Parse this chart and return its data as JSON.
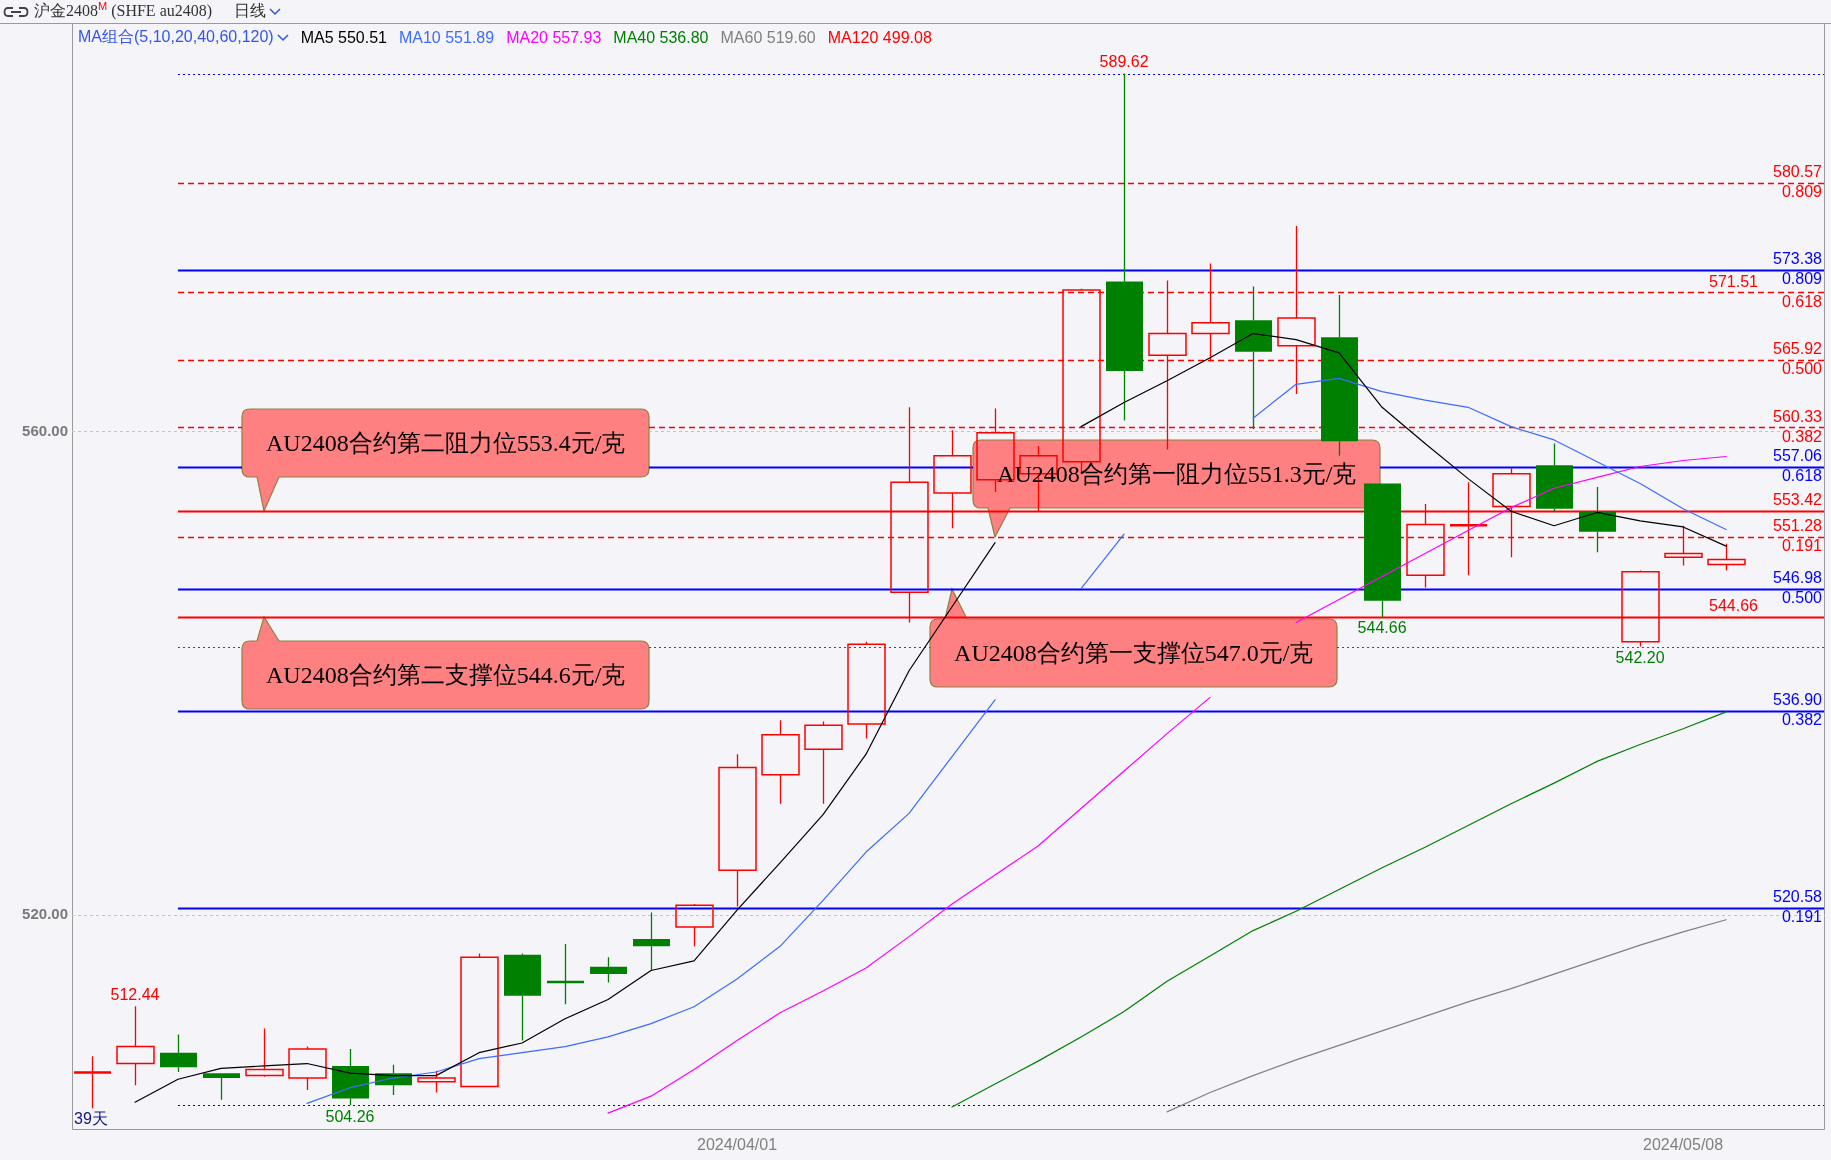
{
  "chart_data": {
    "type": "candlestick",
    "title": "沪金2408$^{M}$ (SHFE au2408)",
    "subtitle": "日线",
    "legend_title": "MA组合(5,10,20,40,60,120)",
    "legend": "top left",
    "grid": "y",
    "categories": [
      null,
      null,
      null,
      null,
      null,
      null,
      null,
      null,
      null,
      null,
      null,
      null,
      null,
      null,
      null,
      "2024/04/01",
      null,
      null,
      null,
      null,
      null,
      null,
      null,
      null,
      null,
      null,
      null,
      null,
      null,
      null,
      null,
      null,
      null,
      null,
      null,
      null,
      null,
      "2024/05/08",
      null
    ],
    "ohlc": [
      [
        506.9,
        508.3,
        504.0,
        507.0
      ],
      [
        507.7,
        512.44,
        505.9,
        509.1
      ],
      [
        508.6,
        510.1,
        507.0,
        507.4
      ],
      [
        506.9,
        506.9,
        504.7,
        506.5
      ],
      [
        506.7,
        510.6,
        506.6,
        507.2
      ],
      [
        506.5,
        509.1,
        505.5,
        508.9
      ],
      [
        507.5,
        508.9,
        504.26,
        504.8
      ],
      [
        506.9,
        507.6,
        505.1,
        505.9
      ],
      [
        506.2,
        507.1,
        505.3,
        506.5
      ],
      [
        505.8,
        516.8,
        505.8,
        516.5
      ],
      [
        516.7,
        516.8,
        509.6,
        513.3
      ],
      [
        514.5,
        517.6,
        512.6,
        514.4
      ],
      [
        515.7,
        516.5,
        514.4,
        515.1
      ],
      [
        518.0,
        520.2,
        515.4,
        517.4
      ],
      [
        519.0,
        520.9,
        517.4,
        520.8
      ],
      [
        523.7,
        533.3,
        520.7,
        532.2
      ],
      [
        531.6,
        536.1,
        529.2,
        534.9
      ],
      [
        533.7,
        536.0,
        529.2,
        535.7
      ],
      [
        535.8,
        542.6,
        534.6,
        542.4
      ],
      [
        546.7,
        562.0,
        544.2,
        555.8
      ],
      [
        554.9,
        560.1,
        552.0,
        558.0
      ],
      [
        556.0,
        561.9,
        555.0,
        559.9
      ],
      [
        556.5,
        558.8,
        553.4,
        558.0
      ],
      [
        557.5,
        571.8,
        556.5,
        571.7
      ],
      [
        572.4,
        589.62,
        560.9,
        565.0
      ],
      [
        566.3,
        572.5,
        558.5,
        568.1
      ],
      [
        568.1,
        573.9,
        565.8,
        569.0
      ],
      [
        569.2,
        572.0,
        560.2,
        566.6
      ],
      [
        567.1,
        577.0,
        563.1,
        569.4
      ],
      [
        567.8,
        571.3,
        558.0,
        559.2
      ],
      [
        555.7,
        555.7,
        544.66,
        546.0
      ],
      [
        548.1,
        554.0,
        547.1,
        552.3
      ],
      [
        552.2,
        555.8,
        548.1,
        552.3
      ],
      [
        553.8,
        557.0,
        549.6,
        556.5
      ],
      [
        557.2,
        559.0,
        553.4,
        553.6
      ],
      [
        553.4,
        555.4,
        550.0,
        551.7
      ],
      [
        542.6,
        548.5,
        542.2,
        548.4
      ],
      [
        549.6,
        552.2,
        548.9,
        549.9
      ],
      [
        549.0,
        550.7,
        548.5,
        549.4
      ]
    ],
    "colors": [
      "#ff0000",
      "#ff0000",
      "#008000",
      "#008000",
      "#ff0000",
      "#ff0000",
      "#008000",
      "#008000",
      "#ff0000",
      "#ff0000",
      "#008000",
      "#008000",
      "#008000",
      "#008000",
      "#ff0000",
      "#ff0000",
      "#ff0000",
      "#ff0000",
      "#ff0000",
      "#ff0000",
      "#ff0000",
      "#ff0000",
      "#ff0000",
      "#ff0000",
      "#008000",
      "#ff0000",
      "#ff0000",
      "#008000",
      "#ff0000",
      "#008000",
      "#008000",
      "#ff0000",
      "#ff0000",
      "#ff0000",
      "#008000",
      "#008000",
      "#ff0000",
      "#ff0000",
      "#ff0000"
    ],
    "value_labels": [
      null,
      "512.44",
      null,
      null,
      null,
      null,
      "504.26",
      null,
      null,
      null,
      null,
      null,
      null,
      null,
      null,
      null,
      null,
      null,
      null,
      null,
      null,
      null,
      null,
      null,
      "589.62",
      null,
      null,
      null,
      null,
      null,
      "544.66",
      null,
      null,
      null,
      null,
      null,
      "542.20",
      null,
      null
    ],
    "series": [
      {
        "type": "line",
        "name": "MA5 550.51",
        "color": "#000000",
        "values": [
          null,
          504.5,
          506.4,
          507.3,
          507.5,
          507.7,
          506.9,
          506.7,
          506.7,
          508.6,
          509.4,
          511.4,
          513.0,
          515.4,
          516.2,
          520.4,
          524.3,
          528.3,
          533.3,
          540.2,
          545.5,
          550.8,
          null,
          560.4,
          562.4,
          564.2,
          566.1,
          568.1,
          567.6,
          566.5,
          562.0,
          559.0,
          556.1,
          553.4,
          552.2,
          553.3,
          552.6,
          552.1,
          550.51
        ]
      },
      {
        "type": "line",
        "name": "MA10 551.89",
        "color": "#3d6bff",
        "values": [
          null,
          null,
          null,
          null,
          null,
          504.4,
          505.7,
          506.5,
          507.0,
          508.1,
          508.6,
          509.1,
          509.9,
          511.0,
          512.4,
          514.7,
          517.4,
          521.2,
          525.2,
          528.4,
          533.1,
          537.8,
          null,
          547.0,
          551.5,
          null,
          null,
          561.1,
          563.9,
          564.4,
          563.3,
          562.6,
          562.0,
          560.4,
          559.3,
          557.5,
          555.7,
          553.6,
          551.89
        ]
      },
      {
        "type": "line",
        "name": "MA20 557.93",
        "color": "#ff00ff",
        "values": [
          null,
          null,
          null,
          null,
          null,
          null,
          null,
          null,
          null,
          null,
          null,
          null,
          503.6,
          505.0,
          507.2,
          509.6,
          511.9,
          513.7,
          515.6,
          518.2,
          520.9,
          523.3,
          525.7,
          528.8,
          531.9,
          535.0,
          538.0,
          null,
          544.2,
          546.1,
          548.0,
          549.9,
          551.8,
          553.7,
          555.3,
          556.2,
          557.1,
          557.6,
          557.93
        ]
      },
      {
        "type": "line",
        "name": "MA40 536.80",
        "color": "#008000",
        "values": [
          null,
          null,
          null,
          null,
          null,
          null,
          null,
          null,
          null,
          null,
          null,
          null,
          null,
          null,
          null,
          null,
          null,
          null,
          null,
          null,
          504.1,
          506.0,
          507.9,
          509.9,
          512.0,
          514.5,
          516.6,
          518.7,
          520.3,
          522.1,
          523.9,
          525.6,
          527.4,
          529.2,
          530.9,
          532.7,
          534.1,
          535.4,
          536.8
        ]
      },
      {
        "type": "line",
        "name": "MA60 519.60",
        "color": "#808080",
        "values": [
          null,
          null,
          null,
          null,
          null,
          null,
          null,
          null,
          null,
          null,
          null,
          null,
          null,
          null,
          null,
          null,
          null,
          null,
          null,
          null,
          null,
          null,
          null,
          null,
          null,
          503.7,
          505.3,
          506.7,
          508.0,
          509.2,
          510.4,
          511.6,
          512.8,
          513.9,
          515.1,
          516.3,
          517.5,
          518.6,
          519.6
        ]
      },
      {
        "type": "line",
        "name": "MA120 499.08",
        "color": "#ff0000",
        "values": [
          null,
          null,
          null,
          null,
          null,
          null,
          null,
          null,
          null,
          null,
          null,
          null,
          null,
          null,
          null,
          null,
          null,
          null,
          null,
          null,
          null,
          null,
          null,
          null,
          null,
          null,
          null,
          null,
          null,
          null,
          null,
          null,
          null,
          null,
          null,
          null,
          null,
          null,
          null
        ]
      }
    ],
    "ylim": [
      502.2,
      593.8
    ],
    "yticks": [
      {
        "value": 520,
        "label": "520.00"
      },
      {
        "value": 560,
        "label": "560.00"
      }
    ],
    "ref_lines": [
      {
        "axis": "y",
        "value": 589.62,
        "color": "#0000ff",
        "line_style": "dotted"
      },
      {
        "axis": "y",
        "value": 580.57,
        "color": "#ff0000",
        "line_style": "dashed"
      },
      {
        "axis": "y",
        "value": 573.38,
        "color": "#0000ff",
        "line_style": "solid"
      },
      {
        "axis": "y",
        "value": 571.51,
        "color": "#ff0000",
        "line_style": "dashed"
      },
      {
        "axis": "y",
        "value": 565.92,
        "color": "#ff0000",
        "line_style": "dashed"
      },
      {
        "axis": "y",
        "value": 560.33,
        "color": "#ff0000",
        "line_style": "dashed"
      },
      {
        "axis": "y",
        "value": 557.06,
        "color": "#0000ff",
        "line_style": "solid"
      },
      {
        "axis": "y",
        "value": 553.42,
        "color": "#ff0000",
        "line_style": "solid"
      },
      {
        "axis": "y",
        "value": 551.28,
        "color": "#ff0000",
        "line_style": "dashed"
      },
      {
        "axis": "y",
        "value": 546.98,
        "color": "#0000ff",
        "line_style": "solid"
      },
      {
        "axis": "y",
        "value": 544.66,
        "color": "#ff0000",
        "line_style": "solid"
      },
      {
        "axis": "y",
        "value": 542.2,
        "color": "#ff0000",
        "line_style": "dotted"
      },
      {
        "axis": "y",
        "value": 536.9,
        "color": "#0000ff",
        "line_style": "solid"
      },
      {
        "axis": "y",
        "value": 520.58,
        "color": "#0000ff",
        "line_style": "solid"
      },
      {
        "axis": "y",
        "value": 504.26,
        "color": "#0000ff",
        "line_style": "dotted"
      }
    ],
    "annotations": [
      {
        "text": "AU2408合约第二阻力位553.4元/克",
        "y": 553.42
      },
      {
        "text": "AU2408合约第一阻力位551.3元/克",
        "y": 551.28
      },
      {
        "text": "AU2408合约第二支撑位544.6元/克",
        "y": 544.66
      },
      {
        "text": "AU2408合约第一支撑位547.0元/克",
        "y": 546.98
      },
      {
        "text": "580.57",
        "y": 580.57
      },
      {
        "text": "0.809",
        "y": 580.57
      },
      {
        "text": "573.38",
        "y": 573.38
      },
      {
        "text": "0.809",
        "y": 573.38
      },
      {
        "text": "571.51",
        "y": 571.51
      },
      {
        "text": "0.618",
        "y": 571.51
      },
      {
        "text": "565.92",
        "y": 565.92
      },
      {
        "text": "0.500",
        "y": 565.92
      },
      {
        "text": "560.33",
        "y": 560.33
      },
      {
        "text": "0.382",
        "y": 560.33
      },
      {
        "text": "557.06",
        "y": 557.06
      },
      {
        "text": "0.618",
        "y": 557.06
      },
      {
        "text": "553.42",
        "y": 553.42
      },
      {
        "text": "551.28",
        "y": 551.28
      },
      {
        "text": "0.191",
        "y": 551.28
      },
      {
        "text": "546.98",
        "y": 546.98
      },
      {
        "text": "0.500",
        "y": 546.98
      },
      {
        "text": "544.66",
        "y": 544.66
      },
      {
        "text": "536.90",
        "y": 536.9
      },
      {
        "text": "0.382",
        "y": 536.9
      },
      {
        "text": "520.58",
        "y": 520.58
      },
      {
        "text": "0.191",
        "y": 520.58
      },
      "39天"
    ]
  }
}
